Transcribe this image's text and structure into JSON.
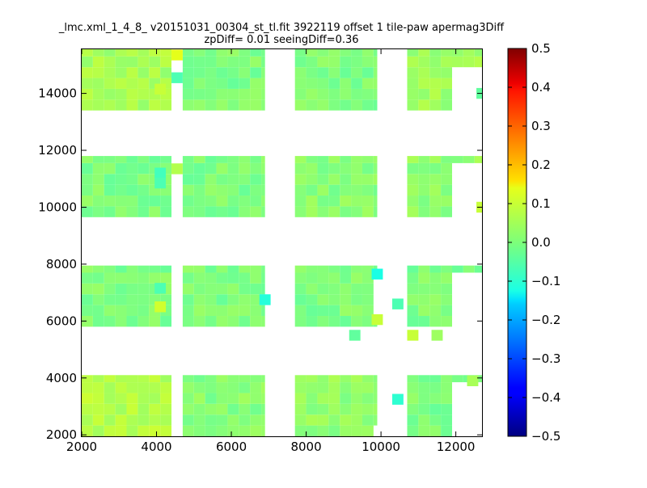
{
  "chart_data": {
    "type": "heatmap",
    "title": "_lmc.xml_1_4_8_ v20151031_00304_st_tl.fit 3922119 offset 1 tile-paw apermag3Diff",
    "subtitle": "zpDiff= 0.01 seeingDiff=0.36",
    "xlabel": "",
    "ylabel": "",
    "xlim": [
      2000,
      12700
    ],
    "ylim": [
      1950,
      15550
    ],
    "x_ticks": [
      2000,
      4000,
      6000,
      8000,
      10000,
      12000
    ],
    "y_ticks": [
      2000,
      4000,
      6000,
      8000,
      10000,
      12000,
      14000
    ],
    "x_tick_labels": [
      "2000",
      "4000",
      "6000",
      "8000",
      "10000",
      "12000"
    ],
    "y_tick_labels": [
      "2000",
      "4000",
      "6000",
      "8000",
      "10000",
      "12000",
      "14000"
    ],
    "colorbar": {
      "min": -0.5,
      "max": 0.5,
      "ticks": [
        0.5,
        0.4,
        0.3,
        0.2,
        0.1,
        0.0,
        -0.1,
        -0.2,
        -0.3,
        -0.4,
        -0.5
      ],
      "tick_labels": [
        "0.5",
        "0.4",
        "0.3",
        "0.2",
        "0.1",
        "0.0",
        "−0.1",
        "−0.2",
        "−0.3",
        "−0.4",
        "−0.5"
      ],
      "colormap": "jet"
    },
    "cell_size": [
      300,
      380
    ],
    "tiles": [
      {
        "x0": 2000,
        "x1": 4400,
        "y0": 1950,
        "y1": 4100,
        "mean": 0.05
      },
      {
        "x0": 4700,
        "x1": 6900,
        "y0": 1950,
        "y1": 4100,
        "mean": 0.01
      },
      {
        "x0": 7700,
        "x1": 9900,
        "y0": 1950,
        "y1": 4100,
        "mean": 0.02
      },
      {
        "x0": 10700,
        "x1": 12700,
        "y0": 1950,
        "y1": 4100,
        "mean": 0.0
      },
      {
        "x0": 2000,
        "x1": 4400,
        "y0": 5800,
        "y1": 7950,
        "mean": 0.0
      },
      {
        "x0": 4700,
        "x1": 6900,
        "y0": 5800,
        "y1": 7950,
        "mean": 0.0
      },
      {
        "x0": 7700,
        "x1": 9900,
        "y0": 5800,
        "y1": 7950,
        "mean": 0.0
      },
      {
        "x0": 10700,
        "x1": 12700,
        "y0": 5800,
        "y1": 7950,
        "mean": 0.0
      },
      {
        "x0": 2000,
        "x1": 4400,
        "y0": 9650,
        "y1": 11800,
        "mean": 0.0
      },
      {
        "x0": 4700,
        "x1": 6900,
        "y0": 9650,
        "y1": 11800,
        "mean": 0.0
      },
      {
        "x0": 7700,
        "x1": 9900,
        "y0": 9650,
        "y1": 11800,
        "mean": 0.01
      },
      {
        "x0": 10700,
        "x1": 12700,
        "y0": 9650,
        "y1": 11800,
        "mean": 0.02
      },
      {
        "x0": 2000,
        "x1": 4400,
        "y0": 13400,
        "y1": 15550,
        "mean": 0.04
      },
      {
        "x0": 4700,
        "x1": 6900,
        "y0": 13400,
        "y1": 15550,
        "mean": 0.0
      },
      {
        "x0": 7700,
        "x1": 9900,
        "y0": 13400,
        "y1": 15550,
        "mean": 0.0
      },
      {
        "x0": 10700,
        "x1": 12700,
        "y0": 13400,
        "y1": 15550,
        "mean": 0.03
      }
    ],
    "missing_regions": [
      {
        "x0": 12000,
        "x1": 12700,
        "y0": 13400,
        "y1": 15100
      },
      {
        "x0": 12000,
        "x1": 12700,
        "y0": 9650,
        "y1": 11400
      },
      {
        "x0": 12000,
        "x1": 12700,
        "y0": 5800,
        "y1": 7550
      },
      {
        "x0": 12000,
        "x1": 12700,
        "y0": 1950,
        "y1": 3700
      },
      {
        "x0": 9900,
        "x1": 10000,
        "y0": 1950,
        "y1": 2400
      },
      {
        "x0": 9900,
        "x1": 10100,
        "y0": 6200,
        "y1": 7600
      },
      {
        "x0": 4400,
        "x1": 4400,
        "y0": 0,
        "y1": 0
      }
    ],
    "special_cells": [
      {
        "x": 4550,
        "y": 15350,
        "v": 0.1
      },
      {
        "x": 4550,
        "y": 14550,
        "v": -0.05
      },
      {
        "x": 4100,
        "y": 14150,
        "v": 0.07
      },
      {
        "x": 4100,
        "y": 11200,
        "v": -0.06
      },
      {
        "x": 4100,
        "y": 10850,
        "v": -0.05
      },
      {
        "x": 4550,
        "y": 11350,
        "v": 0.05
      },
      {
        "x": 12700,
        "y": 14000,
        "v": -0.03
      },
      {
        "x": 12700,
        "y": 10000,
        "v": 0.07
      },
      {
        "x": 6900,
        "y": 6750,
        "v": -0.09
      },
      {
        "x": 9900,
        "y": 7650,
        "v": -0.1
      },
      {
        "x": 9900,
        "y": 6050,
        "v": 0.07
      },
      {
        "x": 4100,
        "y": 7150,
        "v": -0.05
      },
      {
        "x": 4100,
        "y": 6500,
        "v": 0.08
      },
      {
        "x": 10450,
        "y": 6600,
        "v": -0.05
      },
      {
        "x": 9300,
        "y": 5500,
        "v": -0.03
      },
      {
        "x": 10850,
        "y": 5500,
        "v": 0.07
      },
      {
        "x": 11500,
        "y": 5500,
        "v": 0.03
      },
      {
        "x": 10450,
        "y": 3250,
        "v": -0.08
      },
      {
        "x": 12450,
        "y": 3900,
        "v": 0.04
      }
    ]
  }
}
